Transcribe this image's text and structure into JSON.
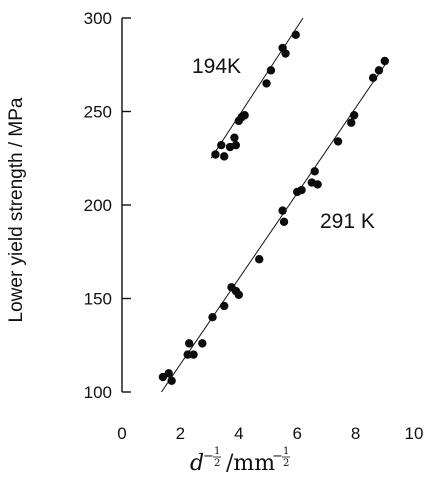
{
  "chart_data": {
    "type": "scatter",
    "xlabel": "d^{-1/2} / mm^{-1/2}",
    "ylabel": "Lower yield strength / MPa",
    "xlim": [
      0,
      10
    ],
    "ylim": [
      100,
      300
    ],
    "xticks": [
      0,
      2,
      4,
      6,
      8,
      10
    ],
    "yticks": [
      100,
      150,
      200,
      250,
      300
    ],
    "xtick_labels": [
      "0",
      "2",
      "4",
      "6",
      "8",
      "10"
    ],
    "ytick_labels": [
      "100",
      "150",
      "200",
      "250",
      "300"
    ],
    "grid": false,
    "series": [
      {
        "name": "194K",
        "points": [
          [
            3.2,
            227
          ],
          [
            3.4,
            232
          ],
          [
            3.5,
            226
          ],
          [
            3.7,
            231
          ],
          [
            3.85,
            236
          ],
          [
            3.9,
            232
          ],
          [
            4.0,
            245
          ],
          [
            4.1,
            247
          ],
          [
            4.2,
            248
          ],
          [
            4.95,
            265
          ],
          [
            5.1,
            272
          ],
          [
            5.5,
            284
          ],
          [
            5.6,
            281
          ],
          [
            5.95,
            291
          ]
        ],
        "fit_line": [
          [
            3.05,
            225
          ],
          [
            6.2,
            300
          ]
        ]
      },
      {
        "name": "291 K",
        "points": [
          [
            1.4,
            108
          ],
          [
            1.6,
            110
          ],
          [
            1.7,
            106
          ],
          [
            2.25,
            120
          ],
          [
            2.3,
            126
          ],
          [
            2.45,
            120
          ],
          [
            2.75,
            126
          ],
          [
            3.1,
            140
          ],
          [
            3.5,
            146
          ],
          [
            3.75,
            156
          ],
          [
            3.9,
            154
          ],
          [
            4.0,
            152
          ],
          [
            4.7,
            171
          ],
          [
            5.5,
            197
          ],
          [
            5.55,
            191
          ],
          [
            6.0,
            207
          ],
          [
            6.15,
            208
          ],
          [
            6.5,
            212
          ],
          [
            6.6,
            218
          ],
          [
            6.7,
            211
          ],
          [
            7.4,
            234
          ],
          [
            7.85,
            244
          ],
          [
            7.95,
            248
          ],
          [
            8.6,
            268
          ],
          [
            8.8,
            272
          ],
          [
            9.0,
            277
          ]
        ],
        "fit_line": [
          [
            1.35,
            100
          ],
          [
            9.05,
            276
          ]
        ]
      }
    ]
  }
}
